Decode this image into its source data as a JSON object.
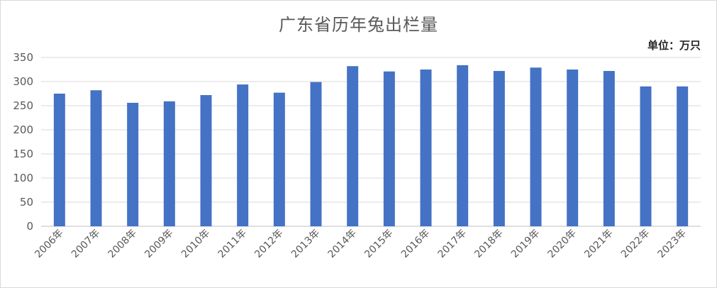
{
  "chart_data": {
    "type": "bar",
    "title": "广东省历年兔出栏量",
    "unit_label": "单位：万只",
    "categories": [
      "2006年",
      "2007年",
      "2008年",
      "2009年",
      "2010年",
      "2011年",
      "2012年",
      "2013年",
      "2014年",
      "2015年",
      "2016年",
      "2017年",
      "2018年",
      "2019年",
      "2020年",
      "2021年",
      "2022年",
      "2023年"
    ],
    "values": [
      275,
      282,
      256,
      259,
      272,
      294,
      277,
      299,
      332,
      321,
      325,
      334,
      322,
      329,
      325,
      322,
      290,
      290
    ],
    "ylim": [
      0,
      350
    ],
    "yticks": [
      "0",
      "50",
      "100",
      "150",
      "200",
      "250",
      "300",
      "350"
    ],
    "xlabel": "",
    "ylabel": "",
    "grid": true,
    "legend": "none",
    "colors": {
      "bar": "#4472C4",
      "grid": "#d9d9d9",
      "tick_text": "#595959"
    }
  }
}
